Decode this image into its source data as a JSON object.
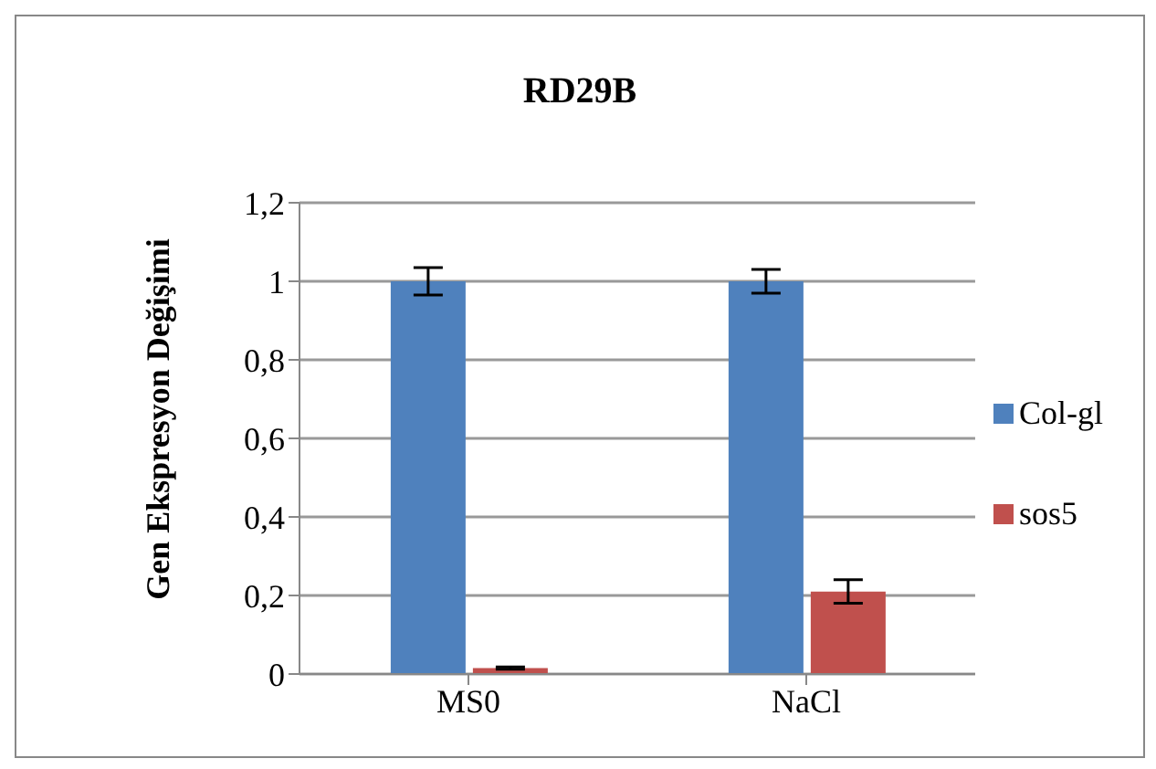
{
  "chart_data": {
    "type": "bar",
    "title": "RD29B",
    "ylabel": "Gen Ekspresyon Değişimi",
    "categories": [
      "MS0",
      "NaCl"
    ],
    "series": [
      {
        "name": "Col-gl",
        "color": "#4f81bd",
        "values": [
          1,
          1
        ],
        "errors": [
          0.035,
          0.03
        ]
      },
      {
        "name": "sos5",
        "color": "#c0504d",
        "values": [
          0.015,
          0.21
        ],
        "errors": [
          0.003,
          0.03
        ]
      }
    ],
    "ylim": [
      0,
      1.2
    ],
    "yticks": [
      0,
      {
        "value": 0.2,
        "label": "0,2"
      },
      {
        "value": 0.4,
        "label": "0,4"
      },
      {
        "value": 0.6,
        "label": "0,6"
      },
      {
        "value": 0.8,
        "label": "0,8"
      },
      1,
      {
        "value": 1.2,
        "label": "1,2"
      }
    ],
    "grid": "y",
    "legend": "right"
  }
}
